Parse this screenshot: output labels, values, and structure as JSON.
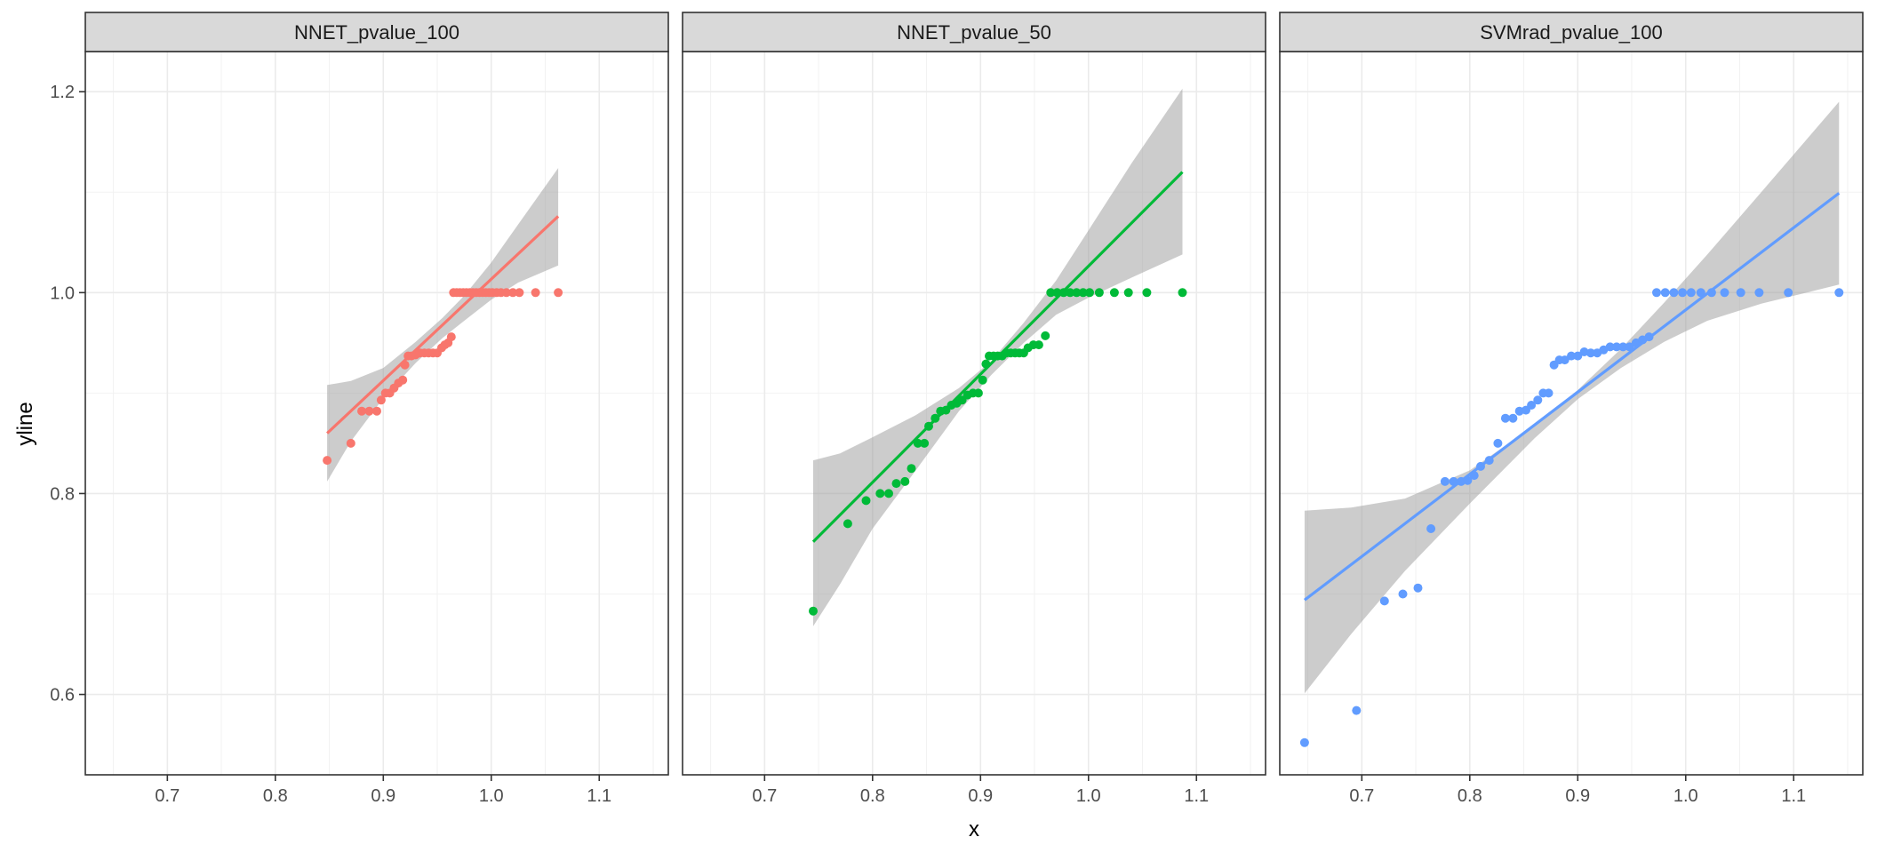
{
  "chart_data": {
    "type": "scatter",
    "xlabel": "x",
    "ylabel": "yline",
    "xlim": [
      0.624,
      1.164
    ],
    "ylim": [
      0.52,
      1.24
    ],
    "x_ticks": [
      0.7,
      0.8,
      0.9,
      1.0,
      1.1
    ],
    "x_tick_labels": [
      "0.7",
      "0.8",
      "0.9",
      "1.0",
      "1.1"
    ],
    "y_ticks": [
      0.6,
      0.8,
      1.0,
      1.2
    ],
    "y_tick_labels": [
      "0.6",
      "0.8",
      "1.0",
      "1.2"
    ],
    "grid": true,
    "smooth": "linear fit with grey confidence band",
    "panels": [
      {
        "title": "NNET_pvalue_100",
        "color": "#F8766D",
        "points": [
          [
            0.848,
            0.833
          ],
          [
            0.87,
            0.85
          ],
          [
            0.88,
            0.882
          ],
          [
            0.887,
            0.882
          ],
          [
            0.894,
            0.882
          ],
          [
            0.898,
            0.893
          ],
          [
            0.902,
            0.9
          ],
          [
            0.906,
            0.9
          ],
          [
            0.91,
            0.905
          ],
          [
            0.914,
            0.91
          ],
          [
            0.918,
            0.913
          ],
          [
            0.92,
            0.928
          ],
          [
            0.923,
            0.937
          ],
          [
            0.926,
            0.937
          ],
          [
            0.93,
            0.938
          ],
          [
            0.934,
            0.94
          ],
          [
            0.938,
            0.94
          ],
          [
            0.942,
            0.94
          ],
          [
            0.946,
            0.94
          ],
          [
            0.95,
            0.94
          ],
          [
            0.954,
            0.945
          ],
          [
            0.957,
            0.948
          ],
          [
            0.96,
            0.95
          ],
          [
            0.963,
            0.956
          ],
          [
            0.965,
            1.0
          ],
          [
            0.968,
            1.0
          ],
          [
            0.971,
            1.0
          ],
          [
            0.974,
            1.0
          ],
          [
            0.977,
            1.0
          ],
          [
            0.98,
            1.0
          ],
          [
            0.983,
            1.0
          ],
          [
            0.986,
            1.0
          ],
          [
            0.989,
            1.0
          ],
          [
            0.992,
            1.0
          ],
          [
            0.995,
            1.0
          ],
          [
            0.998,
            1.0
          ],
          [
            1.001,
            1.0
          ],
          [
            1.005,
            1.0
          ],
          [
            1.009,
            1.0
          ],
          [
            1.014,
            1.0
          ],
          [
            1.02,
            1.0
          ],
          [
            1.026,
            1.0
          ],
          [
            1.041,
            1.0
          ],
          [
            1.062,
            1.0
          ]
        ],
        "line": {
          "x": [
            0.848,
            1.062
          ],
          "y": [
            0.86,
            1.076
          ]
        },
        "band": {
          "x": [
            0.848,
            0.87,
            0.9,
            0.93,
            0.955,
            0.975,
            1.0,
            1.025,
            1.062
          ],
          "lower": [
            0.812,
            0.852,
            0.895,
            0.93,
            0.955,
            0.972,
            0.993,
            1.01,
            1.027
          ],
          "upper": [
            0.908,
            0.912,
            0.925,
            0.951,
            0.975,
            0.997,
            1.03,
            1.068,
            1.124
          ]
        }
      },
      {
        "title": "NNET_pvalue_50",
        "color": "#00BA38",
        "points": [
          [
            0.745,
            0.683
          ],
          [
            0.777,
            0.77
          ],
          [
            0.794,
            0.793
          ],
          [
            0.807,
            0.8
          ],
          [
            0.815,
            0.8
          ],
          [
            0.822,
            0.81
          ],
          [
            0.83,
            0.812
          ],
          [
            0.836,
            0.825
          ],
          [
            0.842,
            0.85
          ],
          [
            0.848,
            0.85
          ],
          [
            0.852,
            0.867
          ],
          [
            0.858,
            0.875
          ],
          [
            0.863,
            0.882
          ],
          [
            0.868,
            0.883
          ],
          [
            0.873,
            0.888
          ],
          [
            0.878,
            0.89
          ],
          [
            0.883,
            0.893
          ],
          [
            0.888,
            0.898
          ],
          [
            0.893,
            0.9
          ],
          [
            0.898,
            0.9
          ],
          [
            0.902,
            0.913
          ],
          [
            0.905,
            0.929
          ],
          [
            0.908,
            0.937
          ],
          [
            0.912,
            0.937
          ],
          [
            0.916,
            0.937
          ],
          [
            0.92,
            0.937
          ],
          [
            0.924,
            0.94
          ],
          [
            0.928,
            0.94
          ],
          [
            0.932,
            0.94
          ],
          [
            0.936,
            0.94
          ],
          [
            0.94,
            0.94
          ],
          [
            0.944,
            0.945
          ],
          [
            0.949,
            0.948
          ],
          [
            0.954,
            0.948
          ],
          [
            0.96,
            0.957
          ],
          [
            0.965,
            1.0
          ],
          [
            0.971,
            1.0
          ],
          [
            0.977,
            1.0
          ],
          [
            0.983,
            1.0
          ],
          [
            0.989,
            1.0
          ],
          [
            0.995,
            1.0
          ],
          [
            1.001,
            1.0
          ],
          [
            1.01,
            1.0
          ],
          [
            1.024,
            1.0
          ],
          [
            1.037,
            1.0
          ],
          [
            1.054,
            1.0
          ],
          [
            1.087,
            1.0
          ]
        ],
        "line": {
          "x": [
            0.745,
            1.087
          ],
          "y": [
            0.752,
            1.12
          ]
        },
        "band": {
          "x": [
            0.745,
            0.77,
            0.8,
            0.84,
            0.88,
            0.91,
            0.94,
            0.97,
            1.0,
            1.04,
            1.087
          ],
          "lower": [
            0.668,
            0.71,
            0.765,
            0.823,
            0.882,
            0.918,
            0.95,
            0.978,
            0.995,
            1.015,
            1.038
          ],
          "upper": [
            0.833,
            0.84,
            0.856,
            0.878,
            0.905,
            0.932,
            0.97,
            1.012,
            1.062,
            1.129,
            1.203
          ]
        }
      },
      {
        "title": "SVMrad_pvalue_100",
        "color": "#619CFF",
        "points": [
          [
            0.647,
            0.552
          ],
          [
            0.695,
            0.584
          ],
          [
            0.721,
            0.693
          ],
          [
            0.738,
            0.7
          ],
          [
            0.752,
            0.706
          ],
          [
            0.764,
            0.765
          ],
          [
            0.777,
            0.812
          ],
          [
            0.785,
            0.812
          ],
          [
            0.792,
            0.812
          ],
          [
            0.798,
            0.813
          ],
          [
            0.804,
            0.818
          ],
          [
            0.81,
            0.827
          ],
          [
            0.818,
            0.833
          ],
          [
            0.826,
            0.85
          ],
          [
            0.833,
            0.875
          ],
          [
            0.84,
            0.875
          ],
          [
            0.846,
            0.882
          ],
          [
            0.852,
            0.883
          ],
          [
            0.857,
            0.888
          ],
          [
            0.863,
            0.893
          ],
          [
            0.868,
            0.9
          ],
          [
            0.873,
            0.9
          ],
          [
            0.878,
            0.928
          ],
          [
            0.883,
            0.933
          ],
          [
            0.888,
            0.933
          ],
          [
            0.894,
            0.937
          ],
          [
            0.9,
            0.937
          ],
          [
            0.906,
            0.941
          ],
          [
            0.912,
            0.94
          ],
          [
            0.918,
            0.94
          ],
          [
            0.924,
            0.943
          ],
          [
            0.93,
            0.946
          ],
          [
            0.936,
            0.946
          ],
          [
            0.942,
            0.946
          ],
          [
            0.948,
            0.946
          ],
          [
            0.954,
            0.95
          ],
          [
            0.96,
            0.953
          ],
          [
            0.966,
            0.956
          ],
          [
            0.973,
            1.0
          ],
          [
            0.981,
            1.0
          ],
          [
            0.989,
            1.0
          ],
          [
            0.997,
            1.0
          ],
          [
            1.005,
            1.0
          ],
          [
            1.014,
            1.0
          ],
          [
            1.024,
            1.0
          ],
          [
            1.036,
            1.0
          ],
          [
            1.051,
            1.0
          ],
          [
            1.068,
            1.0
          ],
          [
            1.095,
            1.0
          ],
          [
            1.142,
            1.0
          ]
        ],
        "line": {
          "x": [
            0.647,
            1.142
          ],
          "y": [
            0.694,
            1.099
          ]
        },
        "band": {
          "x": [
            0.647,
            0.69,
            0.74,
            0.8,
            0.86,
            0.9,
            0.94,
            0.98,
            1.02,
            1.07,
            1.142
          ],
          "lower": [
            0.601,
            0.66,
            0.723,
            0.79,
            0.855,
            0.894,
            0.925,
            0.951,
            0.972,
            0.989,
            1.008
          ],
          "upper": [
            0.783,
            0.786,
            0.795,
            0.823,
            0.868,
            0.903,
            0.944,
            0.99,
            1.038,
            1.1,
            1.19
          ]
        }
      }
    ]
  }
}
